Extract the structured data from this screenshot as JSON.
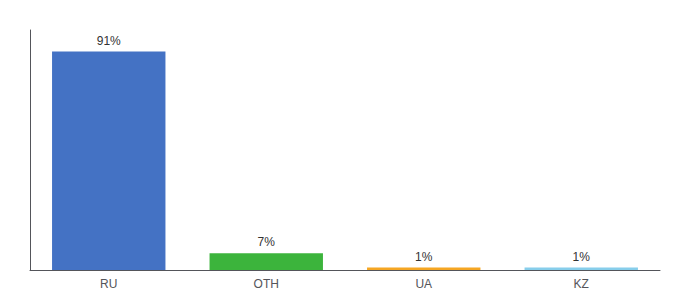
{
  "chart_data": {
    "type": "bar",
    "categories": [
      "RU",
      "OTH",
      "UA",
      "KZ"
    ],
    "values": [
      91,
      7,
      1,
      1
    ],
    "value_labels": [
      "91%",
      "7%",
      "1%",
      "1%"
    ],
    "colors": [
      "#4472c4",
      "#3cb43c",
      "#f5a623",
      "#87ceeb"
    ],
    "ylim": [
      0,
      100
    ],
    "grid": false,
    "data_labels": true,
    "tick_labels": "x"
  }
}
